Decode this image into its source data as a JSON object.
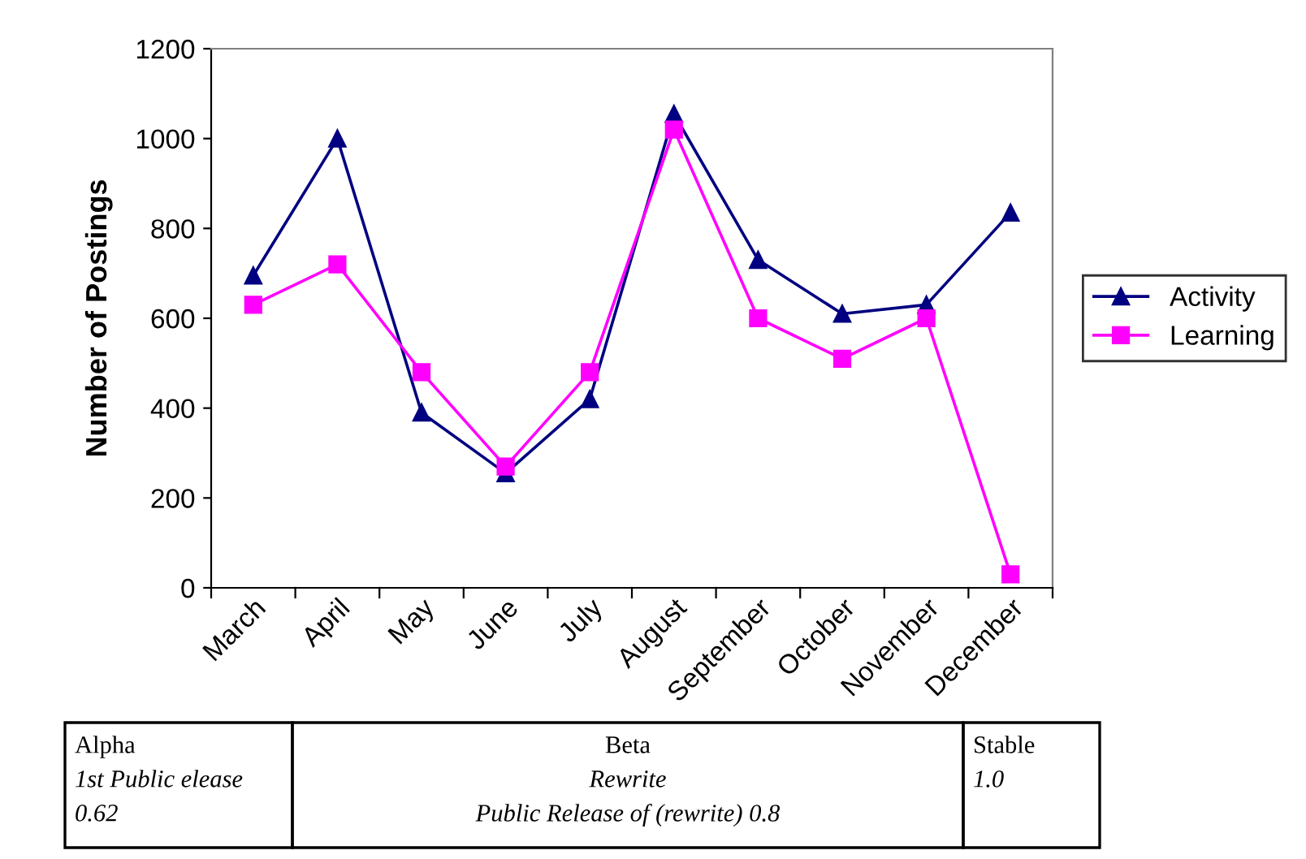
{
  "chart_data": {
    "type": "line",
    "ylabel": "Number of Postings",
    "categories": [
      "March",
      "April",
      "May",
      "June",
      "July",
      "August",
      "September",
      "October",
      "November",
      "December"
    ],
    "series": [
      {
        "name": "Activity",
        "color": "#000080",
        "marker": "triangle",
        "values": [
          695,
          1000,
          390,
          255,
          420,
          1055,
          730,
          610,
          630,
          835
        ]
      },
      {
        "name": "Learning",
        "color": "#ff00ff",
        "marker": "square",
        "values": [
          630,
          720,
          480,
          270,
          480,
          1020,
          600,
          510,
          600,
          30
        ]
      }
    ],
    "ylim": [
      0,
      1200
    ],
    "yticks": [
      0,
      200,
      400,
      600,
      800,
      1000,
      1200
    ],
    "grid": false,
    "legend": "right",
    "line_style": "solid",
    "annotations": [
      "Alpha",
      "1st Public elease",
      "0.62",
      "Beta",
      "Rewrite",
      "Public Release of (rewrite) 0.8",
      "Stable",
      "1.0"
    ]
  }
}
